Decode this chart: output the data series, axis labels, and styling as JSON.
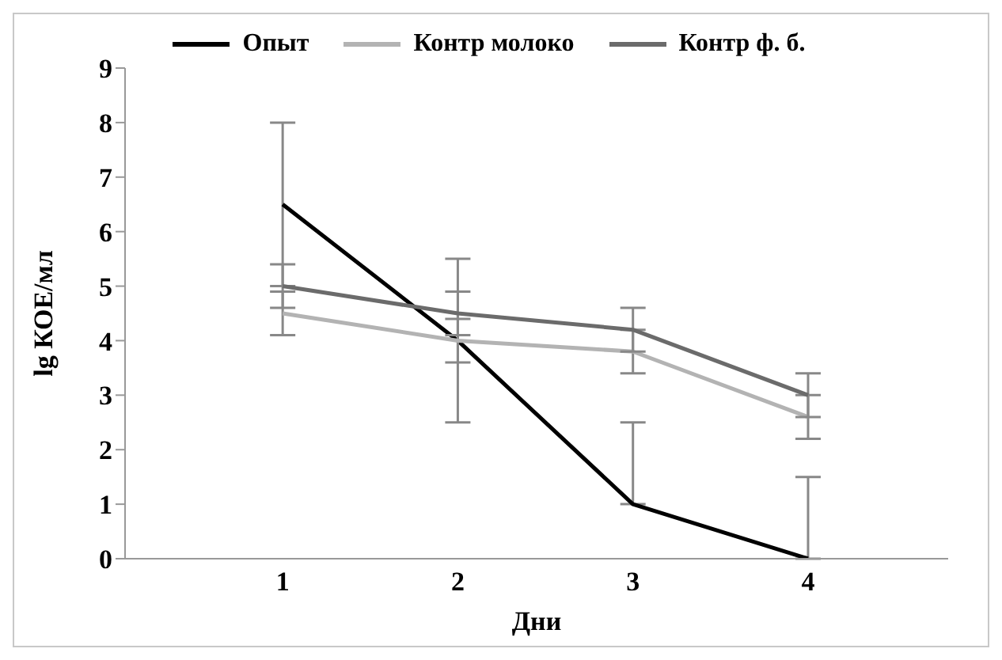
{
  "chart_data": {
    "type": "line",
    "xlabel": "Дни",
    "ylabel": "lg КОЕ/мл",
    "categories": [
      "1",
      "2",
      "3",
      "4"
    ],
    "series": [
      {
        "name": "Опыт",
        "color": "#000000",
        "values": [
          6.5,
          4,
          1,
          0
        ],
        "errors": [
          1.5,
          1.5,
          [
            1,
            2.5
          ],
          [
            0,
            1.5
          ]
        ]
      },
      {
        "name": "Контр молоко",
        "color": "#b3b3b3",
        "values": [
          4.5,
          4,
          3.8,
          2.6
        ],
        "errors": [
          0.4,
          0.4,
          0.4,
          0.4
        ]
      },
      {
        "name": "Контр ф. б.",
        "color": "#6b6b6b",
        "values": [
          5,
          4.5,
          4.2,
          3
        ],
        "errors": [
          0.4,
          0.4,
          0.4,
          0.4
        ]
      }
    ],
    "ylim": [
      0,
      9
    ],
    "yticks": [
      0,
      1,
      2,
      3,
      4,
      5,
      6,
      7,
      8,
      9
    ],
    "grid": false,
    "legend": "top",
    "marker": "none",
    "line_style": "solid"
  }
}
